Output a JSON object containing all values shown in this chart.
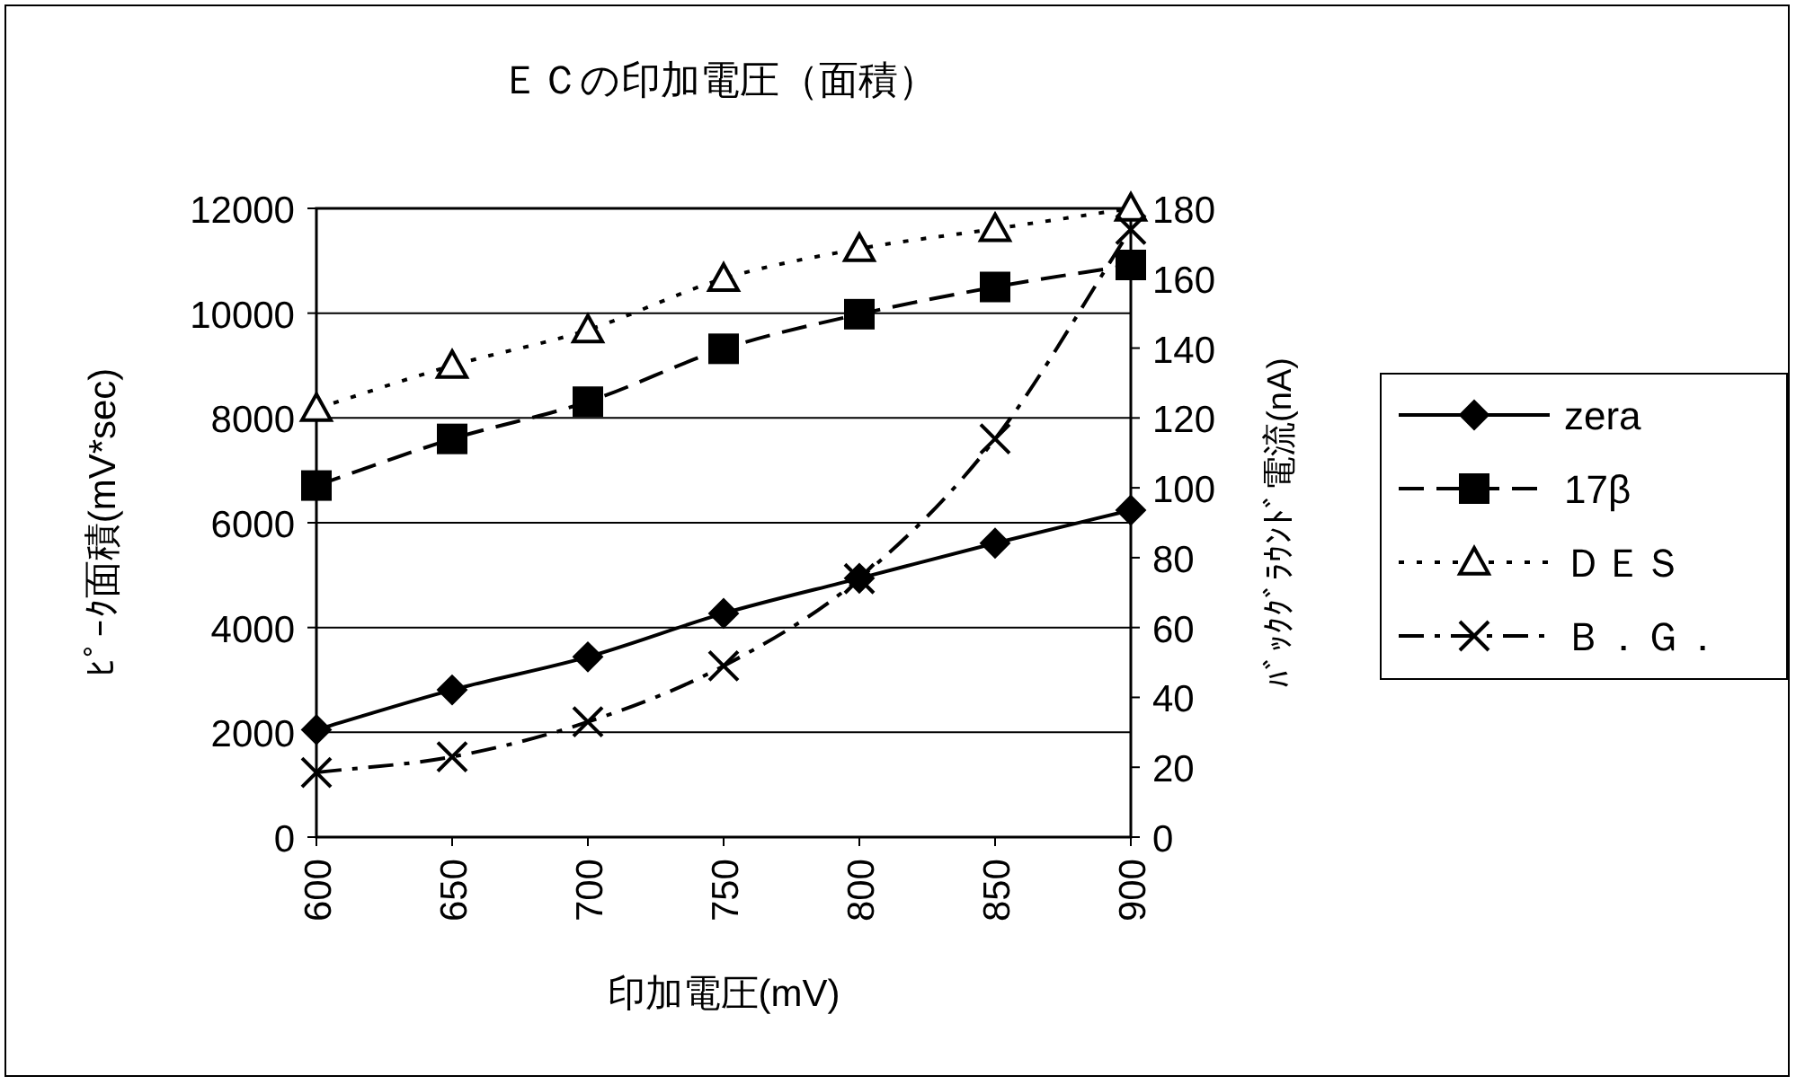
{
  "chart_data": {
    "type": "line",
    "title": "ＥＣの印加電圧（面積）",
    "xlabel": "印加電圧(mV)",
    "ylabel": "ﾋﾟｰｸ面積(mV*sec)",
    "y2label": "ﾊﾞｯｸｸﾞﾗｳﾝﾄﾞ電流(nA)",
    "x": [
      600,
      650,
      700,
      750,
      800,
      850,
      900
    ],
    "xlim": [
      600,
      900
    ],
    "xticks": [
      600,
      650,
      700,
      750,
      800,
      850,
      900
    ],
    "ylim": [
      0,
      12000
    ],
    "yticks": [
      0,
      2000,
      4000,
      6000,
      8000,
      10000,
      12000
    ],
    "y2lim": [
      0,
      180
    ],
    "y2ticks": [
      0,
      20,
      40,
      60,
      80,
      100,
      120,
      140,
      160,
      180
    ],
    "grid": "y",
    "legend": "right",
    "series": [
      {
        "name": "zera",
        "color": "#000000",
        "marker": "diamond",
        "line_style": "solid",
        "values": [
          2050,
          2810,
          3440,
          4270,
          4940,
          5610,
          6240
        ]
      },
      {
        "name": "17β",
        "color": "#000000",
        "marker": "square",
        "line_style": "dashed",
        "values": [
          6710,
          7600,
          8310,
          9320,
          9980,
          10500,
          10920
        ]
      },
      {
        "name": "ＤＥＳ",
        "color": "#000000",
        "marker": "triangle",
        "line_style": "dotted",
        "values": [
          8180,
          9000,
          9680,
          10660,
          11230,
          11610,
          12000
        ]
      },
      {
        "name": "Ｂ．Ｇ．",
        "color": "#000000",
        "marker": "cross",
        "line_style": "dashdot",
        "axis": "y2",
        "values": [
          18.5,
          23,
          33,
          49,
          74,
          114,
          174
        ]
      }
    ]
  }
}
